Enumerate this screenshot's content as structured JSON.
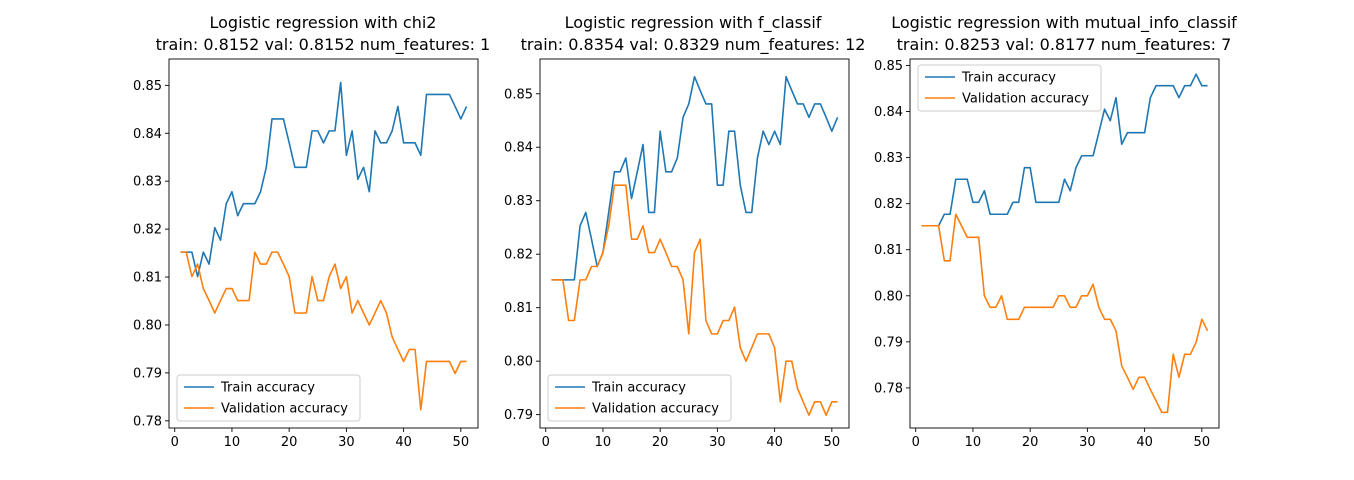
{
  "colors": {
    "train": "#1f77b4",
    "val": "#ff7f0e"
  },
  "chart_data": [
    {
      "type": "line",
      "title": "Logistic regression with chi2",
      "subtitle": "train: 0.8152 val: 0.8152 num_features: 1",
      "xlim": [
        -1,
        53
      ],
      "ylim": [
        0.7785,
        0.8555
      ],
      "xticks": [
        0,
        10,
        20,
        30,
        40,
        50
      ],
      "yticks": [
        0.78,
        0.79,
        0.8,
        0.81,
        0.82,
        0.83,
        0.84,
        0.85
      ],
      "ytick_labels": [
        "0.78",
        "0.79",
        "0.80",
        "0.81",
        "0.82",
        "0.83",
        "0.84",
        "0.85"
      ],
      "legend_position": "lower-left",
      "x": [
        1,
        2,
        3,
        4,
        5,
        6,
        7,
        8,
        9,
        10,
        11,
        12,
        13,
        14,
        15,
        16,
        17,
        18,
        19,
        20,
        21,
        22,
        23,
        24,
        25,
        26,
        27,
        28,
        29,
        30,
        31,
        32,
        33,
        34,
        35,
        36,
        37,
        38,
        39,
        40,
        41,
        42,
        43,
        44,
        45,
        46,
        47,
        48,
        49,
        50,
        51
      ],
      "series": [
        {
          "name": "Train accuracy",
          "color_key": "train",
          "values": [
            0.8152,
            0.8152,
            0.8152,
            0.8101,
            0.8152,
            0.8127,
            0.8203,
            0.8177,
            0.8253,
            0.8278,
            0.8228,
            0.8253,
            0.8253,
            0.8253,
            0.8278,
            0.8329,
            0.843,
            0.843,
            0.843,
            0.838,
            0.8329,
            0.8329,
            0.8329,
            0.8405,
            0.8405,
            0.838,
            0.8405,
            0.8405,
            0.8506,
            0.8354,
            0.8405,
            0.8304,
            0.8329,
            0.8278,
            0.8405,
            0.838,
            0.838,
            0.8405,
            0.8456,
            0.838,
            0.838,
            0.838,
            0.8354,
            0.8481,
            0.8481,
            0.8481,
            0.8481,
            0.8481,
            0.8456,
            0.843,
            0.8456
          ]
        },
        {
          "name": "Validation accuracy",
          "color_key": "val",
          "values": [
            0.8152,
            0.8152,
            0.8101,
            0.8127,
            0.8076,
            0.8051,
            0.8025,
            0.8051,
            0.8076,
            0.8076,
            0.8051,
            0.8051,
            0.8051,
            0.8152,
            0.8127,
            0.8127,
            0.8152,
            0.8152,
            0.8127,
            0.8101,
            0.8025,
            0.8025,
            0.8025,
            0.8101,
            0.8051,
            0.8051,
            0.8101,
            0.8127,
            0.8076,
            0.8101,
            0.8025,
            0.8051,
            0.8025,
            0.8,
            0.8025,
            0.8051,
            0.8025,
            0.7975,
            0.7949,
            0.7924,
            0.7949,
            0.7949,
            0.7823,
            0.7924,
            0.7924,
            0.7924,
            0.7924,
            0.7924,
            0.7899,
            0.7924,
            0.7924
          ]
        }
      ]
    },
    {
      "type": "line",
      "title": "Logistic regression with f_classif",
      "subtitle": "train: 0.8354 val: 0.8329 num_features: 12",
      "xlim": [
        -1,
        53
      ],
      "ylim": [
        0.7875,
        0.8565
      ],
      "xticks": [
        0,
        10,
        20,
        30,
        40,
        50
      ],
      "yticks": [
        0.79,
        0.8,
        0.81,
        0.82,
        0.83,
        0.84,
        0.85
      ],
      "ytick_labels": [
        "0.79",
        "0.80",
        "0.81",
        "0.82",
        "0.83",
        "0.84",
        "0.85"
      ],
      "legend_position": "lower-left",
      "x": [
        1,
        2,
        3,
        4,
        5,
        6,
        7,
        8,
        9,
        10,
        11,
        12,
        13,
        14,
        15,
        16,
        17,
        18,
        19,
        20,
        21,
        22,
        23,
        24,
        25,
        26,
        27,
        28,
        29,
        30,
        31,
        32,
        33,
        34,
        35,
        36,
        37,
        38,
        39,
        40,
        41,
        42,
        43,
        44,
        45,
        46,
        47,
        48,
        49,
        50,
        51
      ],
      "series": [
        {
          "name": "Train accuracy",
          "color_key": "train",
          "values": [
            0.8152,
            0.8152,
            0.8152,
            0.8152,
            0.8152,
            0.8253,
            0.8278,
            0.8228,
            0.8177,
            0.8203,
            0.8278,
            0.8354,
            0.8354,
            0.838,
            0.8304,
            0.8354,
            0.8405,
            0.8278,
            0.8278,
            0.843,
            0.8354,
            0.8354,
            0.838,
            0.8456,
            0.8481,
            0.8532,
            0.8506,
            0.8481,
            0.8481,
            0.8329,
            0.8329,
            0.843,
            0.843,
            0.8329,
            0.8278,
            0.8278,
            0.838,
            0.843,
            0.8405,
            0.843,
            0.8405,
            0.8532,
            0.8506,
            0.8481,
            0.8481,
            0.8456,
            0.8481,
            0.8481,
            0.8456,
            0.843,
            0.8456
          ]
        },
        {
          "name": "Validation accuracy",
          "color_key": "val",
          "values": [
            0.8152,
            0.8152,
            0.8152,
            0.8076,
            0.8076,
            0.8152,
            0.8152,
            0.8177,
            0.8177,
            0.8203,
            0.8253,
            0.8329,
            0.8329,
            0.8329,
            0.8228,
            0.8228,
            0.8253,
            0.8203,
            0.8203,
            0.8228,
            0.8203,
            0.8177,
            0.8177,
            0.8152,
            0.8051,
            0.8203,
            0.8228,
            0.8076,
            0.8051,
            0.8051,
            0.8076,
            0.8076,
            0.8101,
            0.8025,
            0.8,
            0.8025,
            0.8051,
            0.8051,
            0.8051,
            0.8025,
            0.7924,
            0.8,
            0.8,
            0.7949,
            0.7924,
            0.7899,
            0.7924,
            0.7924,
            0.7899,
            0.7924,
            0.7924
          ]
        }
      ]
    },
    {
      "type": "line",
      "title": "Logistic regression with mutual_info_classif",
      "subtitle": "train: 0.8253 val: 0.8177 num_features: 7",
      "xlim": [
        -1,
        53
      ],
      "ylim": [
        0.7713,
        0.8514
      ],
      "xticks": [
        0,
        10,
        20,
        30,
        40,
        50
      ],
      "yticks": [
        0.78,
        0.79,
        0.8,
        0.81,
        0.82,
        0.83,
        0.84,
        0.85
      ],
      "ytick_labels": [
        "0.78",
        "0.79",
        "0.80",
        "0.81",
        "0.82",
        "0.83",
        "0.84",
        "0.85"
      ],
      "legend_position": "upper-left",
      "x": [
        1,
        2,
        3,
        4,
        5,
        6,
        7,
        8,
        9,
        10,
        11,
        12,
        13,
        14,
        15,
        16,
        17,
        18,
        19,
        20,
        21,
        22,
        23,
        24,
        25,
        26,
        27,
        28,
        29,
        30,
        31,
        32,
        33,
        34,
        35,
        36,
        37,
        38,
        39,
        40,
        41,
        42,
        43,
        44,
        45,
        46,
        47,
        48,
        49,
        50,
        51
      ],
      "series": [
        {
          "name": "Train accuracy",
          "color_key": "train",
          "values": [
            0.8152,
            0.8152,
            0.8152,
            0.8152,
            0.8177,
            0.8177,
            0.8253,
            0.8253,
            0.8253,
            0.8203,
            0.8203,
            0.8228,
            0.8177,
            0.8177,
            0.8177,
            0.8177,
            0.8203,
            0.8203,
            0.8278,
            0.8278,
            0.8203,
            0.8203,
            0.8203,
            0.8203,
            0.8203,
            0.8253,
            0.8228,
            0.8278,
            0.8304,
            0.8304,
            0.8304,
            0.8354,
            0.8405,
            0.838,
            0.843,
            0.8329,
            0.8354,
            0.8354,
            0.8354,
            0.8354,
            0.843,
            0.8456,
            0.8456,
            0.8456,
            0.8456,
            0.843,
            0.8456,
            0.8456,
            0.8481,
            0.8456,
            0.8456
          ]
        },
        {
          "name": "Validation accuracy",
          "color_key": "val",
          "values": [
            0.8152,
            0.8152,
            0.8152,
            0.8152,
            0.8076,
            0.8076,
            0.8177,
            0.8152,
            0.8127,
            0.8127,
            0.8127,
            0.8,
            0.7975,
            0.7975,
            0.8,
            0.7949,
            0.7949,
            0.7949,
            0.7975,
            0.7975,
            0.7975,
            0.7975,
            0.7975,
            0.7975,
            0.8,
            0.8,
            0.7975,
            0.7975,
            0.8,
            0.8,
            0.8025,
            0.7975,
            0.7949,
            0.7949,
            0.7924,
            0.7848,
            0.7823,
            0.7797,
            0.7823,
            0.7823,
            0.7797,
            0.7772,
            0.7747,
            0.7747,
            0.7873,
            0.7823,
            0.7873,
            0.7873,
            0.7899,
            0.7949,
            0.7924
          ]
        }
      ]
    }
  ]
}
